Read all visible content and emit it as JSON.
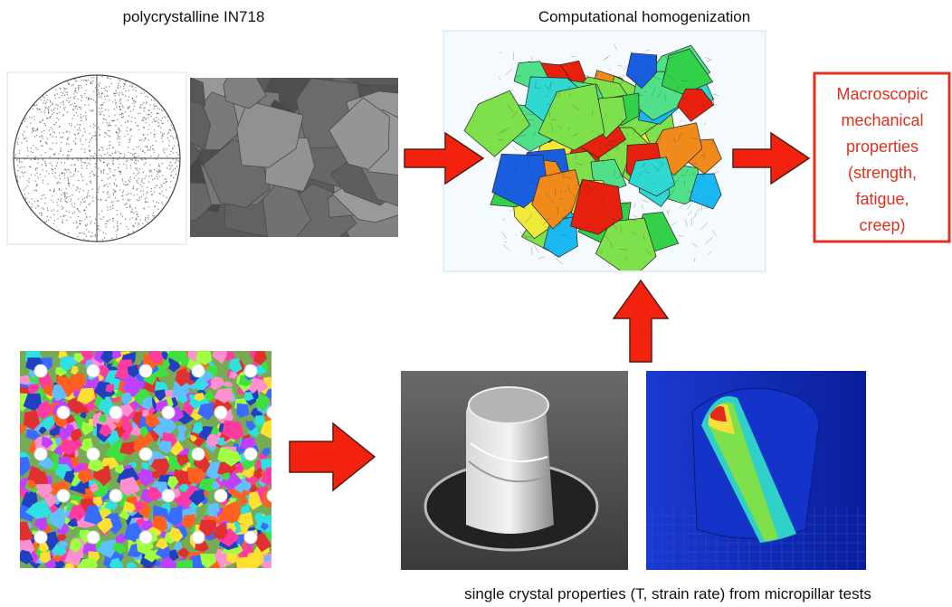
{
  "labels": {
    "polycrystal": "polycrystalline IN718",
    "homogenization": "Computational homogenization",
    "macro": [
      "Macroscopic",
      "mechanical",
      "properties",
      "(strength,",
      "fatigue,",
      "creep)"
    ],
    "micropillar": "single crystal properties (T, strain rate) from micropillar tests"
  }
}
